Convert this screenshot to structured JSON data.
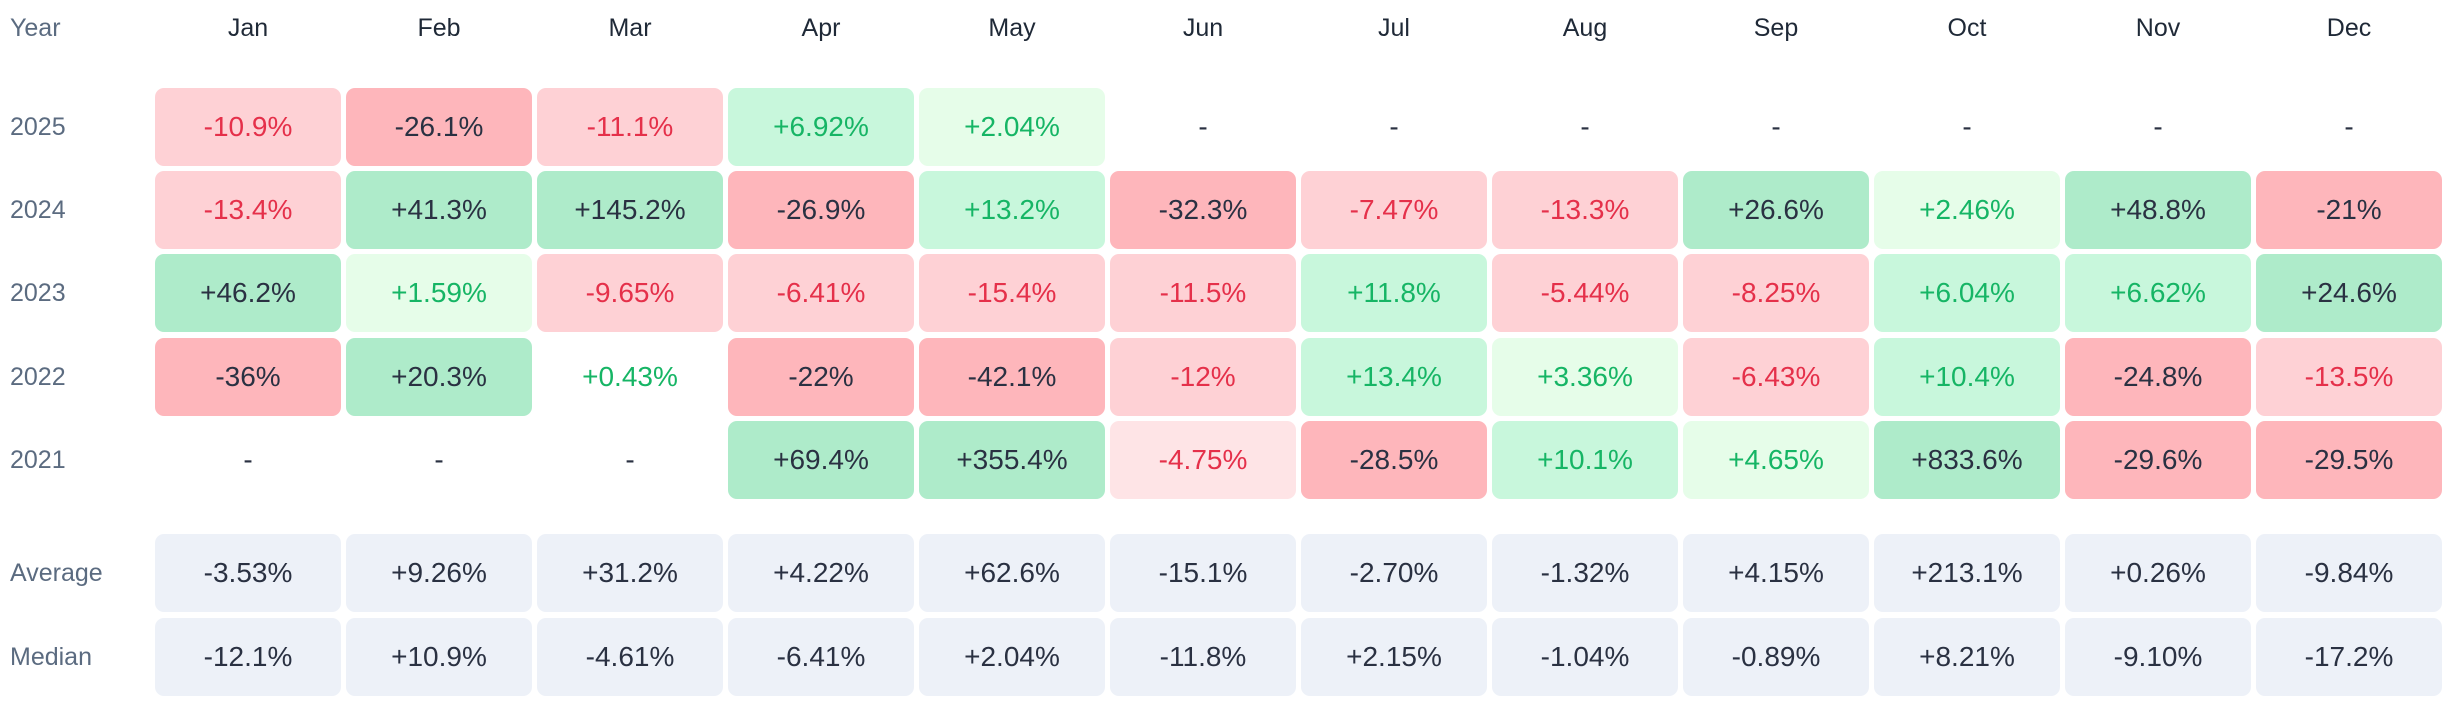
{
  "chart_data": {
    "type": "heatmap",
    "header_label": "Year",
    "months": [
      "Jan",
      "Feb",
      "Mar",
      "Apr",
      "May",
      "Jun",
      "Jul",
      "Aug",
      "Sep",
      "Oct",
      "Nov",
      "Dec"
    ],
    "empty_marker": "-",
    "rows": [
      {
        "year": "2025",
        "values": [
          "-10.9%",
          "-26.1%",
          "-11.1%",
          "+6.92%",
          "+2.04%",
          "-",
          "-",
          "-",
          "-",
          "-",
          "-",
          "-"
        ]
      },
      {
        "year": "2024",
        "values": [
          "-13.4%",
          "+41.3%",
          "+145.2%",
          "-26.9%",
          "+13.2%",
          "-32.3%",
          "-7.47%",
          "-13.3%",
          "+26.6%",
          "+2.46%",
          "+48.8%",
          "-21%"
        ]
      },
      {
        "year": "2023",
        "values": [
          "+46.2%",
          "+1.59%",
          "-9.65%",
          "-6.41%",
          "-15.4%",
          "-11.5%",
          "+11.8%",
          "-5.44%",
          "-8.25%",
          "+6.04%",
          "+6.62%",
          "+24.6%"
        ]
      },
      {
        "year": "2022",
        "values": [
          "-36%",
          "+20.3%",
          "+0.43%",
          "-22%",
          "-42.1%",
          "-12%",
          "+13.4%",
          "+3.36%",
          "-6.43%",
          "+10.4%",
          "-24.8%",
          "-13.5%"
        ]
      },
      {
        "year": "2021",
        "values": [
          "-",
          "-",
          "-",
          "+69.4%",
          "+355.4%",
          "-4.75%",
          "-28.5%",
          "+10.1%",
          "+4.65%",
          "+833.6%",
          "-29.6%",
          "-29.5%"
        ]
      }
    ],
    "summary": [
      {
        "label": "Average",
        "values": [
          "-3.53%",
          "+9.26%",
          "+31.2%",
          "+4.22%",
          "+62.6%",
          "-15.1%",
          "-2.70%",
          "-1.32%",
          "+4.15%",
          "+213.1%",
          "+0.26%",
          "-9.84%"
        ]
      },
      {
        "label": "Median",
        "values": [
          "-12.1%",
          "+10.9%",
          "-4.61%",
          "-6.41%",
          "+2.04%",
          "-11.8%",
          "+2.15%",
          "-1.04%",
          "-0.89%",
          "+8.21%",
          "-9.10%",
          "-17.2%"
        ]
      }
    ]
  },
  "colors": {
    "neg_strong_bg": "#feb6bb",
    "neg_mid_bg": "#fed1d5",
    "neg_light_bg": "#fee4e6",
    "pos_strong_bg": "#aeebca",
    "pos_mid_bg": "#c8f7dc",
    "pos_light_bg": "#e6fde9",
    "neg_text": "#e5304a",
    "pos_text": "#16b565",
    "strong_text": "#2a3142",
    "summary_bg": "#edf1f8",
    "summary_text": "#2a3142",
    "empty_text": "#2a3142"
  }
}
